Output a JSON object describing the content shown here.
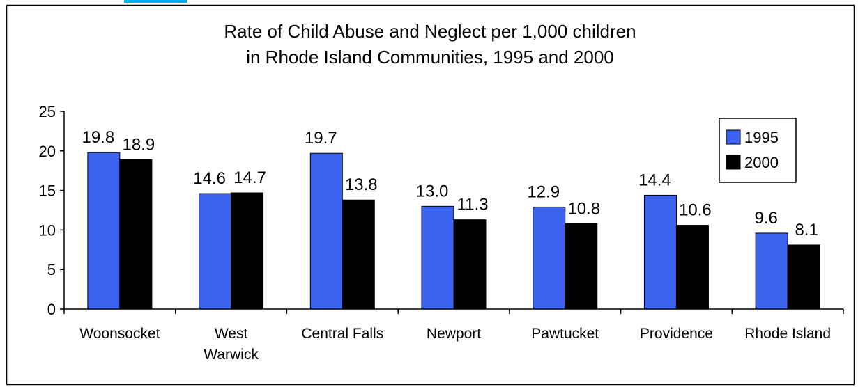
{
  "colors": {
    "series_1995": "#3b63f0",
    "series_2000": "#000000",
    "accent_top": "#00aeef"
  },
  "chart_data": {
    "type": "bar",
    "title_lines": [
      "Rate of Child Abuse and Neglect per 1,000 children",
      "in Rhode Island Communities, 1995 and 2000"
    ],
    "categories": [
      [
        "Woonsocket"
      ],
      [
        "West",
        "Warwick"
      ],
      [
        "Central Falls"
      ],
      [
        "Newport"
      ],
      [
        "Pawtucket"
      ],
      [
        "Providence"
      ],
      [
        "Rhode Island"
      ]
    ],
    "series": [
      {
        "name": "1995",
        "values": [
          19.8,
          14.6,
          19.7,
          13.0,
          12.9,
          14.4,
          9.6
        ],
        "labels": [
          "19.8",
          "14.6",
          "19.7",
          "13.0",
          "12.9",
          "14.4",
          "9.6"
        ]
      },
      {
        "name": "2000",
        "values": [
          18.9,
          14.7,
          13.8,
          11.3,
          10.8,
          10.6,
          8.1
        ],
        "labels": [
          "18.9",
          "14.7",
          "13.8",
          "11.3",
          "10.8",
          "10.6",
          "8.1"
        ]
      }
    ],
    "ylim": [
      0,
      25
    ],
    "yticks": [
      "0",
      "5",
      "10",
      "15",
      "20",
      "25"
    ],
    "grid": false,
    "legend": "top-right"
  }
}
